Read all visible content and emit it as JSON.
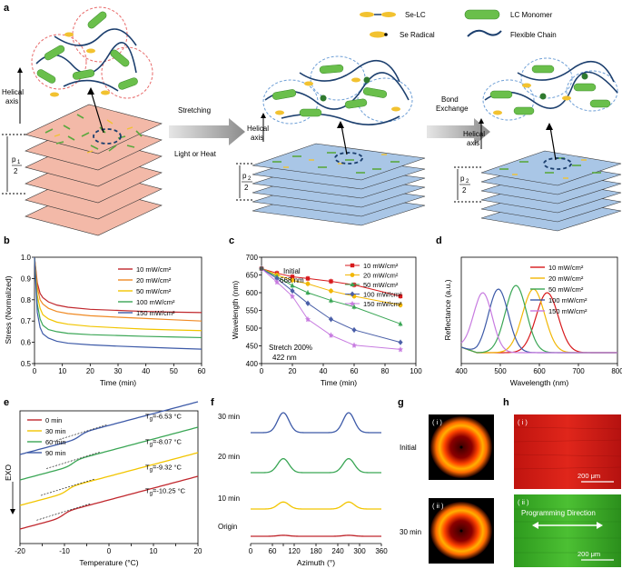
{
  "panels": {
    "a": "a",
    "b": "b",
    "c": "c",
    "d": "d",
    "e": "e",
    "f": "f",
    "g": "g",
    "h": "h"
  },
  "schematic": {
    "legend": {
      "se_lc": "Se-LC",
      "se_radical": "Se Radical",
      "lc_monomer": "LC Monomer",
      "flexible_chain": "Flexible Chain"
    },
    "helical_axis_1": "Helical",
    "helical_axis_2": "axis",
    "arrow1_top": "Stretching",
    "arrow1_bottom": "Light or Heat",
    "arrow2_top": "Bond",
    "arrow2_bottom": "Exchange",
    "pitch1_num": "p",
    "pitch1_sub": "1",
    "pitch2_num": "p",
    "pitch2_sub": "2",
    "pitch_den": "2"
  },
  "colors": {
    "lc_green": "#6abf4b",
    "se_yellow": "#f2c230",
    "chain_blue": "#1c3f6e",
    "pink_layer": "#f3b9a8",
    "blue_layer": "#a9c6e6",
    "red_dash": "#e86b6b",
    "blue_dash": "#6e9fd6"
  },
  "series_labels": [
    "10 mW/cm²",
    "20 mW/cm²",
    "50 mW/cm²",
    "100 mW/cm²",
    "150 mW/cm²"
  ],
  "series_colors": [
    "#c0272d",
    "#f08a24",
    "#f2c500",
    "#3aa655",
    "#3d5aa8"
  ],
  "series_colors_c": [
    "#d7191c",
    "#f2b705",
    "#3aa655",
    "#4a5fa8",
    "#c77be0"
  ],
  "series_colors_d": [
    "#d7191c",
    "#f2b705",
    "#3aa655",
    "#3d5aa8",
    "#c77be0"
  ],
  "chart_data": [
    {
      "panel": "b",
      "type": "line",
      "xlabel": "Time (min)",
      "ylabel": "Stress (Normalized)",
      "xlim": [
        0,
        60
      ],
      "ylim": [
        0.5,
        1.0
      ],
      "xticks": [
        0,
        10,
        20,
        30,
        40,
        50,
        60
      ],
      "yticks": [
        0.5,
        0.6,
        0.7,
        0.8,
        0.9,
        1.0
      ],
      "series": [
        {
          "name": "10 mW/cm²",
          "x": [
            0,
            1,
            2,
            3,
            5,
            8,
            12,
            20,
            30,
            40,
            50,
            60
          ],
          "y": [
            1.0,
            0.88,
            0.83,
            0.81,
            0.79,
            0.775,
            0.765,
            0.755,
            0.75,
            0.745,
            0.742,
            0.74
          ]
        },
        {
          "name": "20 mW/cm²",
          "x": [
            0,
            1,
            2,
            3,
            5,
            8,
            12,
            20,
            30,
            40,
            50,
            60
          ],
          "y": [
            1.0,
            0.86,
            0.8,
            0.78,
            0.76,
            0.745,
            0.735,
            0.725,
            0.718,
            0.712,
            0.706,
            0.7
          ]
        },
        {
          "name": "50 mW/cm²",
          "x": [
            0,
            1,
            2,
            3,
            5,
            8,
            12,
            20,
            30,
            40,
            50,
            60
          ],
          "y": [
            1.0,
            0.82,
            0.76,
            0.73,
            0.71,
            0.695,
            0.685,
            0.675,
            0.668,
            0.662,
            0.658,
            0.655
          ]
        },
        {
          "name": "100 mW/cm²",
          "x": [
            0,
            1,
            2,
            3,
            5,
            8,
            12,
            20,
            30,
            40,
            50,
            60
          ],
          "y": [
            1.0,
            0.78,
            0.71,
            0.68,
            0.66,
            0.65,
            0.642,
            0.636,
            0.632,
            0.628,
            0.625,
            0.622
          ]
        },
        {
          "name": "150 mW/cm²",
          "x": [
            0,
            1,
            2,
            3,
            5,
            8,
            12,
            20,
            30,
            40,
            50,
            60
          ],
          "y": [
            1.0,
            0.74,
            0.67,
            0.64,
            0.62,
            0.605,
            0.596,
            0.588,
            0.582,
            0.577,
            0.572,
            0.568
          ]
        }
      ]
    },
    {
      "panel": "c",
      "type": "line",
      "xlabel": "Time (min)",
      "ylabel": "Wavelength (nm)",
      "xlim": [
        0,
        100
      ],
      "ylim": [
        400,
        700
      ],
      "xticks": [
        0,
        20,
        40,
        60,
        80,
        100
      ],
      "yticks": [
        400,
        450,
        500,
        550,
        600,
        650,
        700
      ],
      "annotations": {
        "initial_1": "Initial",
        "initial_2": "668 nm",
        "stretch_1": "Stretch 200%",
        "stretch_2": "422 nm"
      },
      "series": [
        {
          "name": "10 mW/cm²",
          "x": [
            0,
            10,
            20,
            30,
            45,
            60,
            90
          ],
          "y": [
            668,
            655,
            645,
            640,
            632,
            622,
            590
          ]
        },
        {
          "name": "20 mW/cm²",
          "x": [
            0,
            10,
            20,
            30,
            45,
            60,
            90
          ],
          "y": [
            668,
            650,
            635,
            625,
            605,
            590,
            565
          ]
        },
        {
          "name": "50 mW/cm²",
          "x": [
            0,
            10,
            20,
            30,
            45,
            60,
            90
          ],
          "y": [
            668,
            645,
            620,
            600,
            578,
            560,
            512
          ]
        },
        {
          "name": "100 mW/cm²",
          "x": [
            0,
            10,
            20,
            30,
            45,
            60,
            90
          ],
          "y": [
            668,
            640,
            605,
            570,
            525,
            495,
            460
          ]
        },
        {
          "name": "150 mW/cm²",
          "x": [
            0,
            10,
            20,
            30,
            45,
            60,
            90
          ],
          "y": [
            668,
            630,
            590,
            525,
            480,
            452,
            440
          ]
        }
      ]
    },
    {
      "panel": "d",
      "type": "line",
      "xlabel": "Wavelength (nm)",
      "ylabel": "Reflectance (a.u.)",
      "xlim": [
        400,
        800
      ],
      "xticks": [
        400,
        500,
        600,
        700,
        800
      ],
      "series": [
        {
          "name": "10 mW/cm²",
          "peak": 620,
          "width": 40
        },
        {
          "name": "20 mW/cm²",
          "peak": 585,
          "width": 40
        },
        {
          "name": "50 mW/cm²",
          "peak": 540,
          "width": 38
        },
        {
          "name": "100 mW/cm²",
          "peak": 495,
          "width": 36
        },
        {
          "name": "150 mW/cm²",
          "peak": 455,
          "width": 34
        }
      ]
    },
    {
      "panel": "e",
      "type": "line",
      "xlabel": "Temperature (°C)",
      "ylabel": "EXO",
      "xlim": [
        -20,
        20
      ],
      "xticks": [
        -20,
        -15,
        -10,
        -5,
        0,
        5,
        10,
        15,
        20
      ],
      "series": [
        {
          "name": "0 min",
          "tg": "-10.25 °C"
        },
        {
          "name": "30 min",
          "tg": "-9.32 °C"
        },
        {
          "name": "60 min",
          "tg": "-8.07 °C"
        },
        {
          "name": "90 min",
          "tg": "-6.53 °C"
        }
      ],
      "tg_prefix": "T",
      "tg_sub": "g",
      "colors": [
        "#c0272d",
        "#f2c500",
        "#3aa655",
        "#3d5aa8"
      ]
    },
    {
      "panel": "f",
      "type": "line",
      "xlabel": "Azimuth (°)",
      "xlim": [
        0,
        360
      ],
      "xticks": [
        0,
        60,
        90,
        120,
        180,
        240,
        270,
        300,
        360
      ],
      "xtick_labels": [
        "0",
        "60",
        "",
        "120",
        "180",
        "240",
        "",
        "300",
        "360"
      ],
      "series": [
        {
          "name": "30 min",
          "amplitude": 1.0
        },
        {
          "name": "20 min",
          "amplitude": 0.7
        },
        {
          "name": "10 min",
          "amplitude": 0.35
        },
        {
          "name": "Origin",
          "amplitude": 0.05
        }
      ],
      "colors": [
        "#3d5aa8",
        "#3aa655",
        "#f2c500",
        "#c0272d"
      ]
    }
  ],
  "panel_g": {
    "label_i": "( i )",
    "label_ii": "( ii )",
    "row1": "Initial",
    "row2": "30 min"
  },
  "panel_h": {
    "label_i": "( i )",
    "label_ii": "( ii )",
    "scale_1": "200 μm",
    "scale_2": "200 μm",
    "direction": "Programming Direction"
  }
}
